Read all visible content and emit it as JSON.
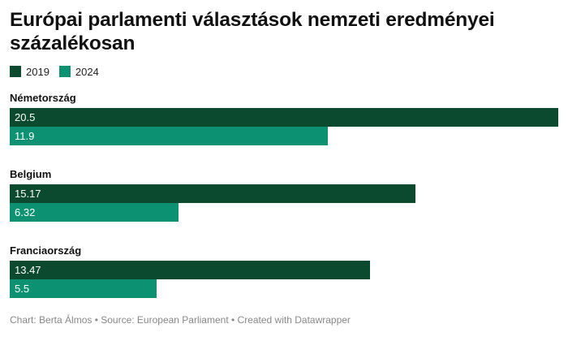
{
  "title": "Európai parlamenti választások nemzeti eredményei százalékosan",
  "footer": "Chart: Berta Álmos • Source: European Parliament • Created with Datawrapper",
  "colors": {
    "series_2019": "#0b4a2e",
    "series_2024": "#0c9273"
  },
  "chart_data": {
    "type": "bar",
    "orientation": "horizontal",
    "categories": [
      "Németország",
      "Belgium",
      "Franciaország"
    ],
    "series": [
      {
        "name": "2019",
        "color": "#0b4a2e",
        "values": [
          20.5,
          15.17,
          13.47
        ],
        "labels": [
          "20.5",
          "15.17",
          "13.47"
        ]
      },
      {
        "name": "2024",
        "color": "#0c9273",
        "values": [
          11.9,
          6.32,
          5.5
        ],
        "labels": [
          "11.9",
          "6.32",
          "5.5"
        ]
      }
    ],
    "xlim": [
      0,
      20.5
    ],
    "grid": false,
    "legend_position": "top-left"
  }
}
